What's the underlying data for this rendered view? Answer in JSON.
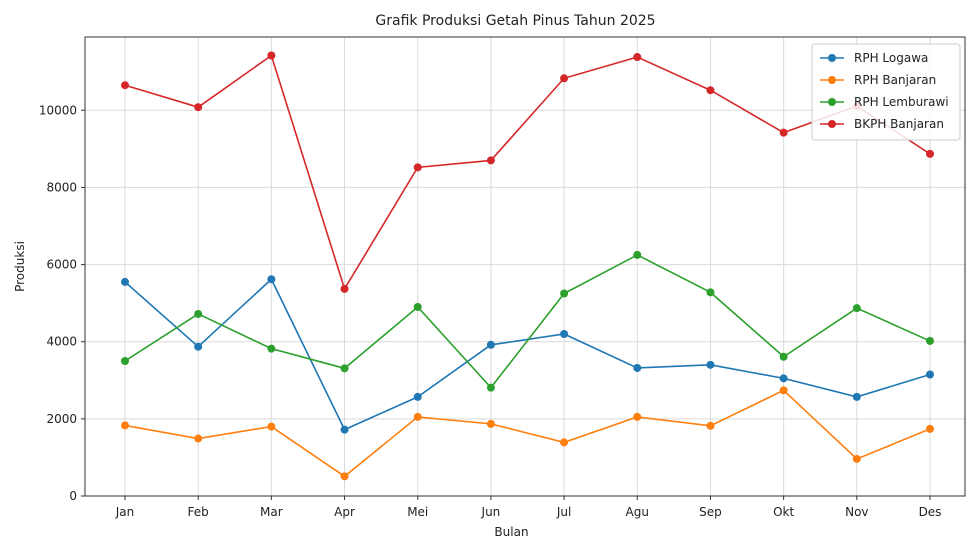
{
  "chart_data": {
    "type": "line",
    "title": "Grafik Produksi Getah Pinus Tahun 2025",
    "xlabel": "Bulan",
    "ylabel": "Produksi",
    "categories": [
      "Jan",
      "Feb",
      "Mar",
      "Apr",
      "Mei",
      "Jun",
      "Jul",
      "Agu",
      "Sep",
      "Okt",
      "Nov",
      "Des"
    ],
    "ylim": [
      0,
      11900
    ],
    "yticks": [
      0,
      2000,
      4000,
      6000,
      8000,
      10000
    ],
    "grid": true,
    "legend_position": "top-right",
    "series": [
      {
        "name": "RPH Logawa",
        "color": "#1f77b4",
        "values": [
          5550,
          3870,
          5620,
          1720,
          2570,
          3920,
          4200,
          3320,
          3400,
          3050,
          2570,
          3150
        ]
      },
      {
        "name": "RPH Banjaran",
        "color": "#ff7f0e",
        "values": [
          1830,
          1490,
          1800,
          510,
          2050,
          1870,
          1390,
          2050,
          1820,
          2740,
          960,
          1740
        ]
      },
      {
        "name": "RPH Lemburawi",
        "color": "#2ca02c",
        "values": [
          3500,
          4720,
          3820,
          3310,
          4900,
          2810,
          5250,
          6250,
          5280,
          3610,
          4870,
          4020
        ]
      },
      {
        "name": "BKPH Banjaran",
        "color": "#d62728",
        "values": [
          10650,
          10080,
          11420,
          5370,
          8520,
          8700,
          10830,
          11380,
          10520,
          9420,
          10110,
          8870
        ]
      }
    ]
  }
}
